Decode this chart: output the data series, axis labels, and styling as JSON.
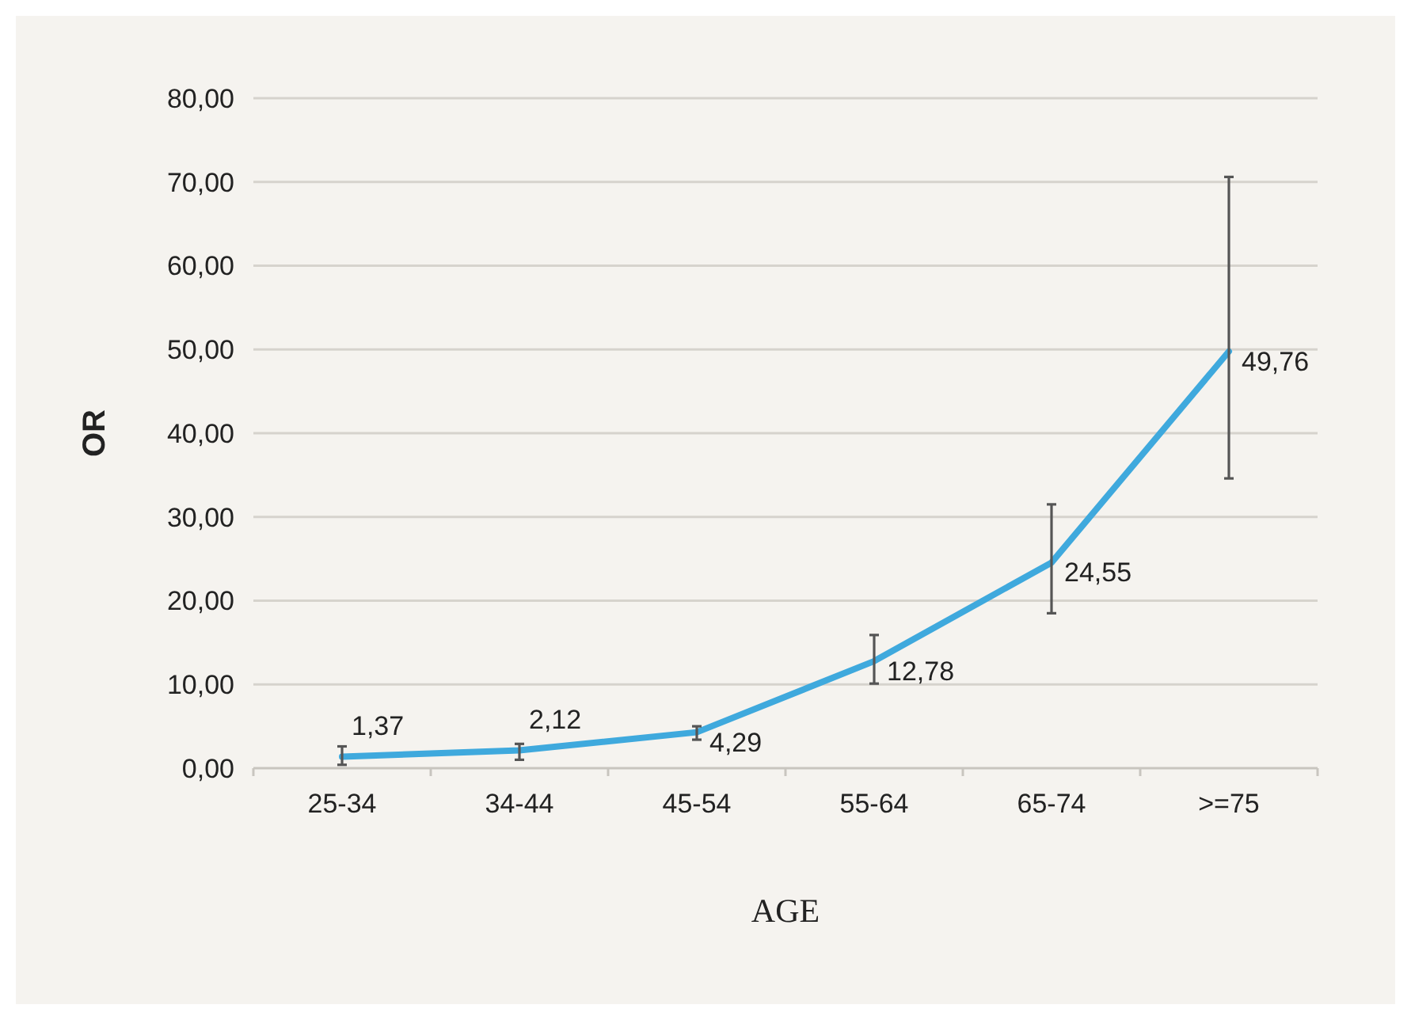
{
  "chart_data": {
    "type": "line",
    "xlabel": "AGE",
    "ylabel": "OR",
    "categories": [
      "25-34",
      "34-44",
      "45-54",
      "55-64",
      "65-74",
      ">=75"
    ],
    "series": [
      {
        "color": "#3fa9dd",
        "values": [
          1.37,
          2.12,
          4.29,
          12.78,
          24.55,
          49.76
        ],
        "errors": [
          [
            0.4,
            2.6
          ],
          [
            1.0,
            2.9
          ],
          [
            3.4,
            5.0
          ],
          [
            10.1,
            15.9
          ],
          [
            18.5,
            31.5
          ],
          [
            34.6,
            70.6
          ]
        ],
        "value_labels": [
          "1,37",
          "2,12",
          "4,29",
          "12,78",
          "24,55",
          "49,76"
        ]
      }
    ],
    "ylim": [
      0,
      80
    ],
    "yticks": [
      {
        "value": 0,
        "label": "0,00"
      },
      {
        "value": 10,
        "label": "10,00"
      },
      {
        "value": 20,
        "label": "20,00"
      },
      {
        "value": 30,
        "label": "30,00"
      },
      {
        "value": 40,
        "label": "40,00"
      },
      {
        "value": 50,
        "label": "50,00"
      },
      {
        "value": 60,
        "label": "60,00"
      },
      {
        "value": 70,
        "label": "70,00"
      },
      {
        "value": 80,
        "label": "80,00"
      }
    ],
    "grid": "y",
    "marker": "none",
    "line_style": "solid"
  }
}
